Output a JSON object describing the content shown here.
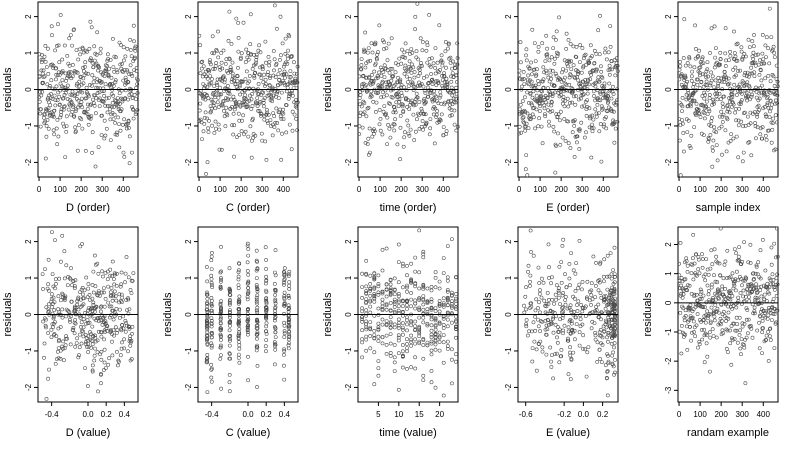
{
  "chart_data": [
    {
      "type": "scatter",
      "xlabel": "D (order)",
      "ylabel": "residuals",
      "xlim": [
        -5,
        470
      ],
      "ylim": [
        -2.4,
        2.4
      ],
      "xticks": [
        0,
        100,
        200,
        300,
        400
      ],
      "yticks": [
        -2,
        -1,
        0,
        1,
        2
      ],
      "reference_line": 0,
      "x_kind": "index",
      "n": 470,
      "seed": 11,
      "y_spread": 0.75
    },
    {
      "type": "scatter",
      "xlabel": "C (order)",
      "ylabel": "residuals",
      "xlim": [
        -5,
        470
      ],
      "ylim": [
        -2.4,
        2.4
      ],
      "xticks": [
        0,
        100,
        200,
        300,
        400
      ],
      "yticks": [
        -2,
        -1,
        0,
        1,
        2
      ],
      "reference_line": 0,
      "x_kind": "index",
      "n": 470,
      "seed": 12,
      "y_spread": 0.75
    },
    {
      "type": "scatter",
      "xlabel": "time (order)",
      "ylabel": "residuals",
      "xlim": [
        -5,
        470
      ],
      "ylim": [
        -2.4,
        2.4
      ],
      "xticks": [
        0,
        100,
        200,
        300,
        400
      ],
      "yticks": [
        -2,
        -1,
        0,
        1,
        2
      ],
      "reference_line": 0,
      "x_kind": "index",
      "n": 470,
      "seed": 13,
      "y_spread": 0.75
    },
    {
      "type": "scatter",
      "xlabel": "E (order)",
      "ylabel": "residuals",
      "xlim": [
        -5,
        470
      ],
      "ylim": [
        -2.4,
        2.4
      ],
      "xticks": [
        0,
        100,
        200,
        300,
        400
      ],
      "yticks": [
        -2,
        -1,
        0,
        1,
        2
      ],
      "reference_line": 0,
      "x_kind": "index",
      "n": 470,
      "seed": 14,
      "y_spread": 0.75
    },
    {
      "type": "scatter",
      "xlabel": "sample index",
      "ylabel": "residuals",
      "xlim": [
        -5,
        470
      ],
      "ylim": [
        -2.4,
        2.4
      ],
      "xticks": [
        0,
        100,
        200,
        300,
        400
      ],
      "yticks": [
        -2,
        -1,
        0,
        1,
        2
      ],
      "reference_line": 0,
      "x_kind": "index",
      "n": 470,
      "seed": 15,
      "y_spread": 0.75
    },
    {
      "type": "scatter",
      "xlabel": "D (value)",
      "ylabel": "residuals",
      "xlim": [
        -0.55,
        0.55
      ],
      "ylim": [
        -2.4,
        2.4
      ],
      "xticks": [
        -0.4,
        0,
        0.2,
        0.4
      ],
      "xtick_labels": [
        "-0.4",
        "0.0",
        "0.2",
        "0.4"
      ],
      "yticks": [
        -2,
        -1,
        0,
        1,
        2
      ],
      "reference_line": 0,
      "x_kind": "continuous",
      "x_range": [
        -0.5,
        0.5
      ],
      "n": 400,
      "seed": 21,
      "y_spread": 0.75
    },
    {
      "type": "scatter",
      "xlabel": "C (value)",
      "ylabel": "residuals",
      "xlim": [
        -0.55,
        0.55
      ],
      "ylim": [
        -2.4,
        2.4
      ],
      "xticks": [
        -0.4,
        0,
        0.2,
        0.4
      ],
      "xtick_labels": [
        "-0.4",
        "0.0",
        "0.2",
        "0.4"
      ],
      "yticks": [
        -2,
        -1,
        0,
        1,
        2
      ],
      "reference_line": 0,
      "x_kind": "discrete",
      "x_levels": [
        -0.45,
        -0.4,
        -0.3,
        -0.2,
        -0.1,
        0,
        0.1,
        0.2,
        0.3,
        0.4,
        0.45
      ],
      "n": 420,
      "seed": 22,
      "y_spread": 0.75
    },
    {
      "type": "scatter",
      "xlabel": "time (value)",
      "ylabel": "residuals",
      "xlim": [
        0,
        24.5
      ],
      "ylim": [
        -2.4,
        2.4
      ],
      "xticks": [
        5,
        10,
        15,
        20
      ],
      "yticks": [
        -2,
        -1,
        0,
        1,
        2
      ],
      "reference_line": 0,
      "x_kind": "discrete",
      "x_levels": [
        1,
        2,
        3,
        4,
        5,
        6,
        7,
        8,
        9,
        10,
        11,
        12,
        13,
        14,
        15,
        16,
        17,
        18,
        19,
        20,
        21,
        22,
        23,
        24
      ],
      "n": 430,
      "seed": 23,
      "y_spread": 0.75
    },
    {
      "type": "scatter",
      "xlabel": "E (value)",
      "ylabel": "residuals",
      "xlim": [
        -0.68,
        0.36
      ],
      "ylim": [
        -2.4,
        2.4
      ],
      "xticks": [
        -0.6,
        -0.2,
        0,
        0.2
      ],
      "xtick_labels": [
        "-0.6",
        "-0.2",
        "0.0",
        "0.2"
      ],
      "yticks": [
        -2,
        -1,
        0,
        1,
        2
      ],
      "reference_line": 0,
      "x_kind": "skewed",
      "x_range": [
        -0.62,
        0.33
      ],
      "n": 420,
      "seed": 24,
      "y_spread": 0.75
    },
    {
      "type": "scatter",
      "xlabel": "randam example",
      "ylabel": "residuals",
      "xlim": [
        -5,
        470
      ],
      "ylim": [
        -3.4,
        2.6
      ],
      "xticks": [
        0,
        100,
        200,
        300,
        400
      ],
      "yticks": [
        -3,
        -2,
        -1,
        0,
        1,
        2
      ],
      "reference_line": 0,
      "x_kind": "index",
      "n": 470,
      "seed": 31,
      "y_spread": 0.95
    }
  ]
}
